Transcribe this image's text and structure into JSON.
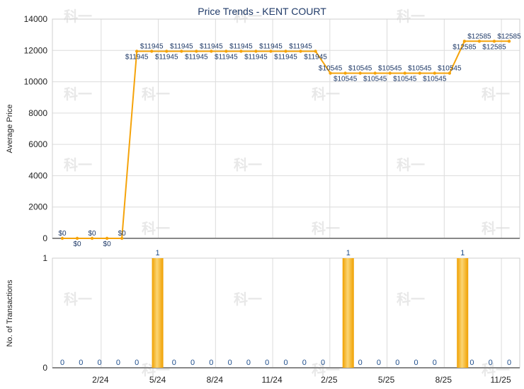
{
  "chart_data": [
    {
      "type": "line",
      "title": "Price Trends - KENT COURT",
      "ylabel": "Average Price",
      "xlabel": "",
      "ylim": [
        0,
        14000
      ],
      "yticks": [
        0,
        2000,
        4000,
        6000,
        8000,
        10000,
        12000,
        14000
      ],
      "grid": true,
      "color": "#f5a30a",
      "series": [
        {
          "values": [
            0,
            0,
            0,
            0,
            0,
            11945,
            11945,
            11945,
            11945,
            11945,
            11945,
            11945,
            11945,
            11945,
            11945,
            11945,
            11945,
            11945,
            10545,
            10545,
            10545,
            10545,
            10545,
            10545,
            10545,
            10545,
            10545,
            12585,
            12585,
            12585,
            12585
          ],
          "labels": [
            "$0",
            "$0",
            "$0",
            "$0",
            "$0",
            "$11945",
            "$11945",
            "$11945",
            "$11945",
            "$11945",
            "$11945",
            "$11945",
            "$11945",
            "$11945",
            "$11945",
            "$11945",
            "$11945",
            "$11945",
            "$10545",
            "$10545",
            "$10545",
            "$10545",
            "$10545",
            "$10545",
            "$10545",
            "$10545",
            "$10545",
            "$12585",
            "$12585",
            "$12585",
            "$12585"
          ]
        }
      ]
    },
    {
      "type": "bar",
      "ylabel": "No. of Transactions",
      "xlabel": "",
      "ylim": [
        0,
        1
      ],
      "yticks": [
        0,
        1
      ],
      "xtick_labels": [
        "2/24",
        "5/24",
        "8/24",
        "11/24",
        "2/25",
        "5/25",
        "8/25",
        "11/25"
      ],
      "color": "#f5a30a",
      "bars": [
        {
          "month": "5/24",
          "value": 1,
          "label": "1"
        },
        {
          "month": "3/25",
          "value": 1,
          "label": "1"
        },
        {
          "month": "9/25",
          "value": 1,
          "label": "1"
        }
      ],
      "zero_labels": [
        "0",
        "0",
        "0",
        "0",
        "0",
        "0",
        "0",
        "0",
        "0",
        "0",
        "0",
        "0",
        "0",
        "0",
        "0",
        "0",
        "0",
        "0",
        "0",
        "0",
        "0",
        "0"
      ]
    }
  ],
  "watermark": "科一",
  "colors": {
    "line": "#f5a30a",
    "bar_light": "#fbd574",
    "bar_dark": "#f0a000",
    "grid": "#dcdcdc",
    "title": "#1f3a68",
    "value_label": "#1f4e8c"
  }
}
